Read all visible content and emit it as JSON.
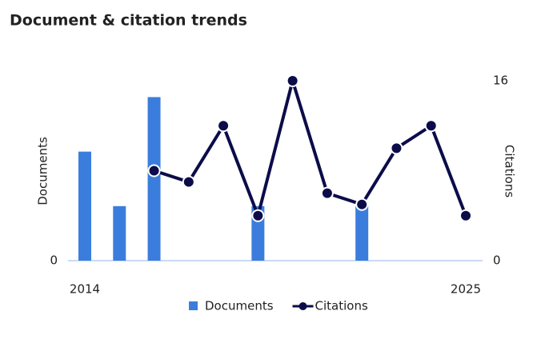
{
  "chart_data": {
    "type": "bar-line",
    "title": "Document & citation trends",
    "categories": [
      "2014",
      null,
      null,
      null,
      null,
      null,
      null,
      null,
      null,
      null,
      null,
      "2025"
    ],
    "series": [
      {
        "name": "Documents",
        "type": "bar",
        "color": "#3b7ddd",
        "values": [
          2,
          1,
          3,
          0,
          0,
          1,
          0,
          0,
          1,
          0,
          0,
          0
        ]
      },
      {
        "name": "Citations",
        "type": "line",
        "axis": "y2",
        "color": "#0c0c4a",
        "values": [
          null,
          null,
          8,
          7,
          12,
          4,
          16,
          6,
          5,
          10,
          12,
          4
        ]
      }
    ],
    "ylabel": "Documents",
    "y2label": "Citations",
    "ylim": [
      0,
      3.3
    ],
    "yticks": [
      0
    ],
    "y2lim": [
      0,
      16
    ],
    "y2ticks": [
      0,
      16
    ]
  }
}
